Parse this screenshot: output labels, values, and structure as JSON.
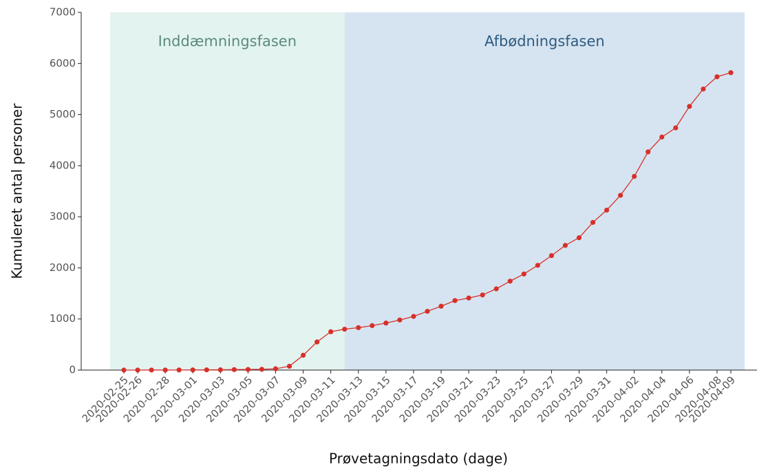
{
  "chart_data": {
    "type": "line",
    "x_label": "Prøvetagningsdato (dage)",
    "y_label": "Kumuleret antal personer",
    "x": [
      "2020-02-25",
      "2020-02-26",
      "2020-02-27",
      "2020-02-28",
      "2020-02-29",
      "2020-03-01",
      "2020-03-02",
      "2020-03-03",
      "2020-03-04",
      "2020-03-05",
      "2020-03-06",
      "2020-03-07",
      "2020-03-08",
      "2020-03-09",
      "2020-03-10",
      "2020-03-11",
      "2020-03-12",
      "2020-03-13",
      "2020-03-14",
      "2020-03-15",
      "2020-03-16",
      "2020-03-17",
      "2020-03-18",
      "2020-03-19",
      "2020-03-20",
      "2020-03-21",
      "2020-03-22",
      "2020-03-23",
      "2020-03-24",
      "2020-03-25",
      "2020-03-26",
      "2020-03-27",
      "2020-03-28",
      "2020-03-29",
      "2020-03-30",
      "2020-03-31",
      "2020-04-01",
      "2020-04-02",
      "2020-04-03",
      "2020-04-04",
      "2020-04-05",
      "2020-04-06",
      "2020-04-07",
      "2020-04-08",
      "2020-04-09"
    ],
    "series": [
      {
        "color": "#d7302a",
        "values": [
          0,
          0,
          1,
          1,
          2,
          3,
          4,
          6,
          9,
          12,
          15,
          25,
          75,
          290,
          550,
          750,
          800,
          830,
          870,
          920,
          980,
          1050,
          1150,
          1250,
          1360,
          1410,
          1470,
          1590,
          1740,
          1880,
          2050,
          2240,
          2440,
          2590,
          2890,
          3130,
          3420,
          3790,
          4270,
          4560,
          4740,
          5160,
          5500,
          5740,
          5820
        ]
      }
    ],
    "xticks": [
      "2020-02-25",
      "2020-02-26",
      "2020-02-28",
      "2020-03-01",
      "2020-03-03",
      "2020-03-05",
      "2020-03-07",
      "2020-03-09",
      "2020-03-11",
      "2020-03-13",
      "2020-03-15",
      "2020-03-17",
      "2020-03-19",
      "2020-03-21",
      "2020-03-23",
      "2020-03-25",
      "2020-03-27",
      "2020-03-29",
      "2020-03-31",
      "2020-04-02",
      "2020-04-04",
      "2020-04-06",
      "2020-04-08",
      "2020-04-09"
    ],
    "ylim": [
      0,
      7000
    ],
    "yticks": [
      0,
      1000,
      2000,
      3000,
      4000,
      5000,
      6000,
      7000
    ],
    "grid": false,
    "regions": [
      {
        "label": "Inddæmningsfasen",
        "start": "2020-02-24",
        "end": "2020-03-12",
        "color": "#e3f3ef",
        "text_color": "#5b8a80"
      },
      {
        "label": "Afbødningsfasen",
        "start": "2020-03-12",
        "end": "2020-04-10",
        "color": "#d6e4f1",
        "text_color": "#2f5b80"
      }
    ]
  }
}
